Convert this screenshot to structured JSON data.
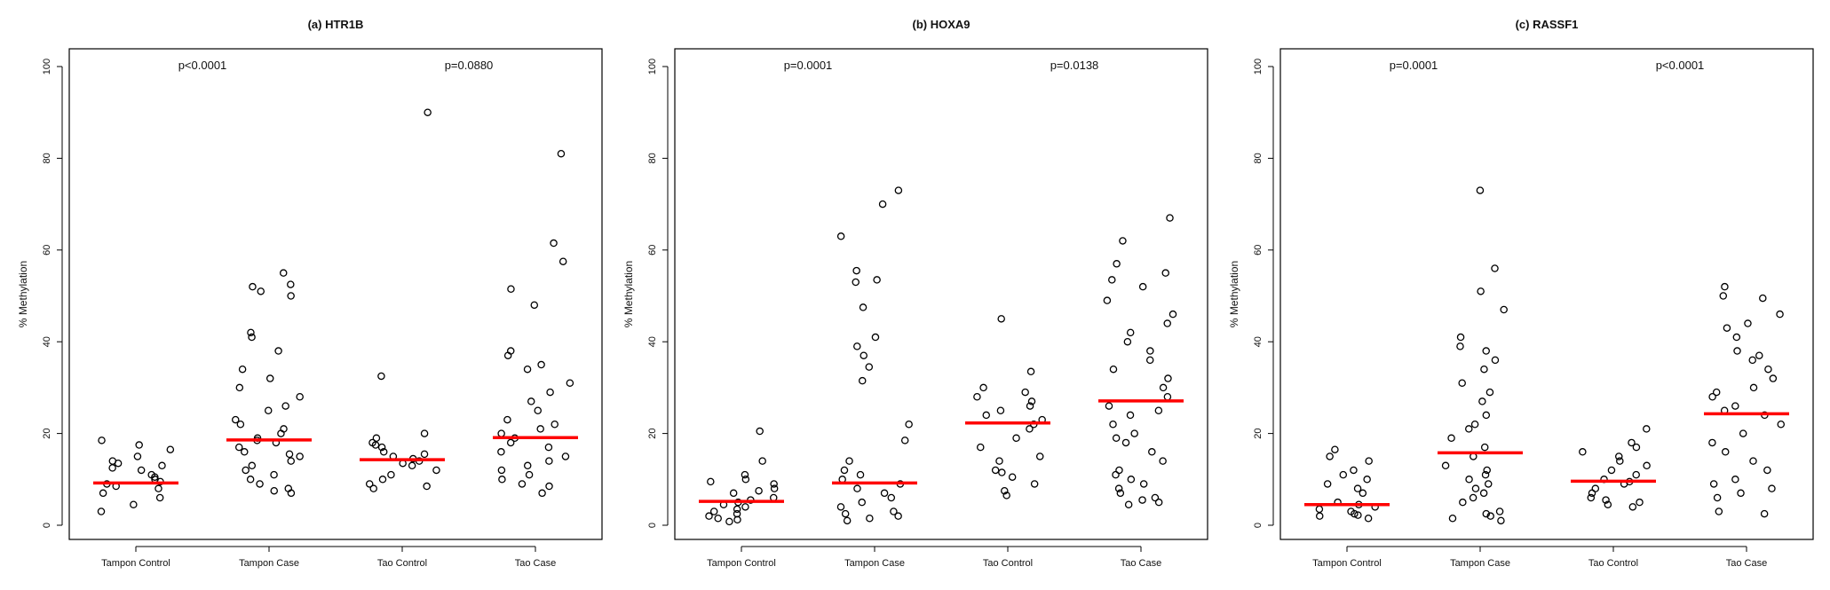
{
  "chart_data": [
    {
      "type": "scatter",
      "title": "(a) HTR1B",
      "ylabel": "% Methylation",
      "xlabel": "",
      "ylim": [
        0,
        100
      ],
      "yticks": [
        0,
        20,
        40,
        60,
        80,
        100
      ],
      "categories": [
        "Tampon Control",
        "Tampon Case",
        "Tao Control",
        "Tao Case"
      ],
      "pvalues": [
        {
          "label": "p<0.0001",
          "between": [
            0,
            1
          ]
        },
        {
          "label": "p=0.0880",
          "between": [
            2,
            3
          ]
        }
      ],
      "medians": [
        9.2,
        18.6,
        14.3,
        19.1
      ],
      "median_color": "#ff0000",
      "series": [
        {
          "values": [
            3,
            4.5,
            6,
            7,
            8,
            8.5,
            9,
            9.5,
            10,
            10.5,
            11,
            12,
            12.5,
            13,
            13.5,
            14,
            15,
            16.5,
            17.5,
            18.5
          ]
        },
        {
          "values": [
            7,
            7.5,
            8,
            9,
            10,
            11,
            12,
            13,
            14,
            15,
            15.5,
            16,
            17,
            18,
            18.5,
            19,
            20,
            21,
            22,
            23,
            25,
            26,
            28,
            30,
            32,
            34,
            38,
            41,
            42,
            50,
            51,
            52,
            52.5,
            55
          ]
        },
        {
          "values": [
            8,
            8.5,
            9,
            10,
            11,
            12,
            13,
            13.5,
            14,
            14.5,
            15,
            15.5,
            16,
            17,
            17.5,
            18,
            19,
            20,
            32.5,
            90
          ]
        },
        {
          "values": [
            7,
            8.5,
            9,
            10,
            11,
            12,
            13,
            14,
            15,
            16,
            17,
            18,
            19,
            20,
            21,
            22,
            23,
            25,
            27,
            29,
            31,
            34,
            35,
            37,
            38,
            48,
            51.5,
            57.5,
            61.5,
            81
          ]
        }
      ]
    },
    {
      "type": "scatter",
      "title": "(b) HOXA9",
      "ylabel": "% Methylation",
      "xlabel": "",
      "ylim": [
        0,
        100
      ],
      "yticks": [
        0,
        20,
        40,
        60,
        80,
        100
      ],
      "categories": [
        "Tampon Control",
        "Tampon Case",
        "Tao Control",
        "Tao Case"
      ],
      "pvalues": [
        {
          "label": "p=0.0001",
          "between": [
            0,
            1
          ]
        },
        {
          "label": "p=0.0138",
          "between": [
            2,
            3
          ]
        }
      ],
      "medians": [
        5.2,
        9.2,
        22.3,
        27.1
      ],
      "median_color": "#ff0000",
      "series": [
        {
          "values": [
            0.8,
            1.2,
            1.5,
            2,
            2.5,
            3,
            3.5,
            4,
            4.5,
            5,
            5.5,
            6,
            7,
            7.5,
            8,
            9,
            9.5,
            10,
            11,
            14,
            20.5
          ]
        },
        {
          "values": [
            1,
            1.5,
            2,
            2.5,
            3,
            4,
            5,
            6,
            7,
            8,
            9,
            10,
            11,
            12,
            14,
            18.5,
            22,
            31.5,
            34.5,
            37,
            39,
            41,
            47.5,
            53,
            53.5,
            55.5,
            63,
            70,
            73
          ]
        },
        {
          "values": [
            6.5,
            7.5,
            9,
            10.5,
            11.5,
            12,
            14,
            15,
            17,
            19,
            21,
            22,
            23,
            24,
            25,
            26,
            27,
            28,
            29,
            30,
            33.5,
            45
          ]
        },
        {
          "values": [
            4.5,
            5,
            5.5,
            6,
            7,
            8,
            9,
            10,
            11,
            12,
            14,
            16,
            18,
            19,
            20,
            22,
            24,
            25,
            26,
            28,
            30,
            32,
            34,
            36,
            38,
            40,
            42,
            44,
            46,
            49,
            52,
            53.5,
            55,
            57,
            62,
            67
          ]
        }
      ]
    },
    {
      "type": "scatter",
      "title": "(c) RASSF1",
      "ylabel": "% Methylation",
      "xlabel": "",
      "ylim": [
        0,
        100
      ],
      "yticks": [
        0,
        20,
        40,
        60,
        80,
        100
      ],
      "categories": [
        "Tampon Control",
        "Tampon Case",
        "Tao Control",
        "Tao Case"
      ],
      "pvalues": [
        {
          "label": "p=0.0001",
          "between": [
            0,
            1
          ]
        },
        {
          "label": "p<0.0001",
          "between": [
            2,
            3
          ]
        }
      ],
      "medians": [
        4.5,
        15.8,
        9.6,
        24.3
      ],
      "median_color": "#ff0000",
      "series": [
        {
          "values": [
            1.5,
            2,
            2.2,
            2.5,
            3,
            3.5,
            4,
            4.5,
            5,
            7,
            8,
            9,
            10,
            11,
            12,
            14,
            15,
            16.5
          ]
        },
        {
          "values": [
            1,
            1.5,
            2,
            2.5,
            3,
            5,
            6,
            7,
            8,
            9,
            10,
            11,
            12,
            13,
            15,
            17,
            19,
            21,
            22,
            24,
            27,
            29,
            31,
            34,
            36,
            38,
            39,
            41,
            47,
            51,
            56,
            73
          ]
        },
        {
          "values": [
            4,
            4.5,
            5,
            5.5,
            6,
            7,
            8,
            9,
            9.5,
            10,
            11,
            12,
            13,
            14,
            15,
            16,
            17,
            18,
            21
          ]
        },
        {
          "values": [
            2.5,
            3,
            6,
            7,
            8,
            9,
            10,
            12,
            14,
            16,
            18,
            20,
            22,
            24,
            25,
            26,
            28,
            29,
            30,
            32,
            34,
            36,
            37,
            38,
            41,
            43,
            44,
            46,
            49.5,
            50,
            52
          ]
        }
      ]
    }
  ]
}
